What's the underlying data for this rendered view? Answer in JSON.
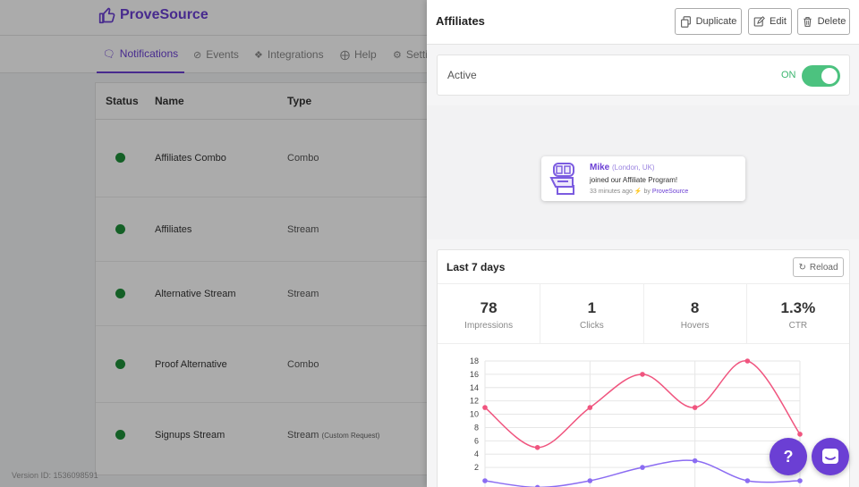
{
  "app": {
    "logo_text": "ProveSource",
    "version": "Version ID: 1536098591"
  },
  "nav": {
    "items": [
      {
        "label": "Notifications",
        "icon": "chat-icon"
      },
      {
        "label": "Events",
        "icon": "rss-icon"
      },
      {
        "label": "Integrations",
        "icon": "puzzle-icon"
      },
      {
        "label": "Help",
        "icon": "lifebuoy-icon"
      },
      {
        "label": "Setti",
        "icon": "gear-icon"
      }
    ]
  },
  "table": {
    "headers": [
      "Status",
      "Name",
      "Type"
    ],
    "rows": [
      {
        "status": "active",
        "name": "Affiliates Combo",
        "type": "Combo",
        "type_note": ""
      },
      {
        "status": "active",
        "name": "Affiliates",
        "type": "Stream",
        "type_note": ""
      },
      {
        "status": "active",
        "name": "Alternative Stream",
        "type": "Stream",
        "type_note": ""
      },
      {
        "status": "active",
        "name": "Proof Alternative",
        "type": "Combo",
        "type_note": ""
      },
      {
        "status": "active",
        "name": "Signups Stream",
        "type": "Stream",
        "type_note": "(Custom Request)"
      }
    ]
  },
  "panel": {
    "title": "Affiliates",
    "buttons": {
      "duplicate": "Duplicate",
      "edit": "Edit",
      "delete": "Delete"
    },
    "active_label": "Active",
    "toggle_label": "ON",
    "toggle_on": true,
    "preview": {
      "name": "Mike",
      "location": "(London, UK)",
      "message": "joined our Affiliate Program!",
      "time": "33 minutes ago",
      "by": "by",
      "brand": "ProveSource"
    },
    "stats": {
      "title": "Last 7 days",
      "reload": "Reload",
      "items": [
        {
          "value": "78",
          "label": "Impressions"
        },
        {
          "value": "1",
          "label": "Clicks"
        },
        {
          "value": "8",
          "label": "Hovers"
        },
        {
          "value": "1.3%",
          "label": "CTR"
        }
      ]
    }
  },
  "fab": {
    "help": "?"
  },
  "colors": {
    "brand": "#6b3fd4",
    "active": "#1e8f3a",
    "toggle": "#4cc27f",
    "series1": "#f0557f",
    "series2": "#8b6cf2"
  },
  "chart_data": {
    "type": "line",
    "ylim": [
      0,
      18
    ],
    "yticks": [
      2,
      4,
      6,
      8,
      10,
      12,
      14,
      16,
      18
    ],
    "series": [
      {
        "values": [
          11,
          5,
          11,
          16,
          11,
          18,
          7
        ]
      },
      {
        "values": [
          0,
          -1,
          0,
          2,
          3,
          0,
          0
        ]
      }
    ]
  }
}
